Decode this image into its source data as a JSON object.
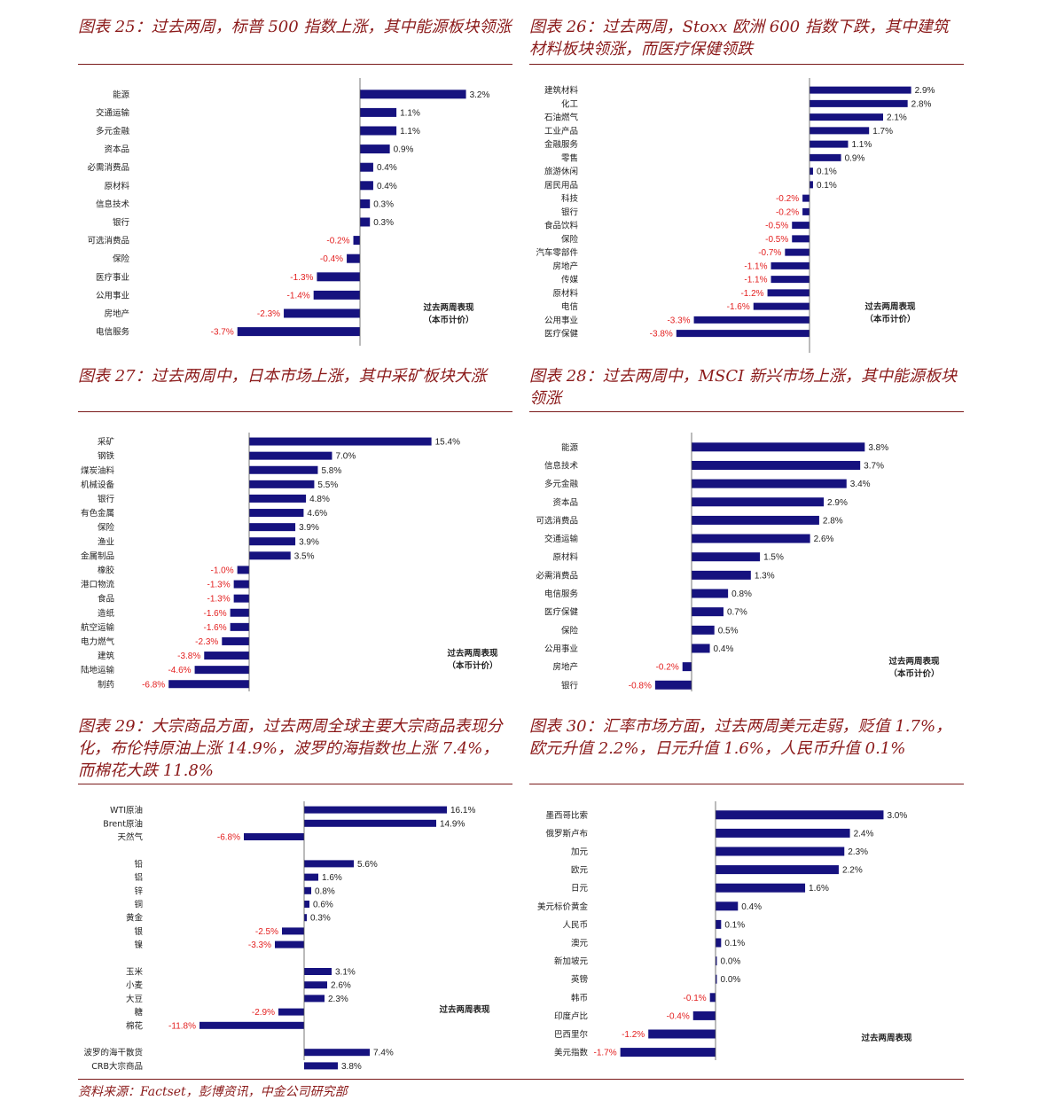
{
  "source": "资料来源：Factset，彭博资讯，中金公司研究部",
  "colors": {
    "bar": "#16127f",
    "positive_label": "#222222",
    "negative_label": "#e31e1e",
    "title": "#8b1a1a"
  },
  "charts": [
    {
      "title": "图表 25：过去两周，标普 500 指数上涨，其中能源板块领涨",
      "note1": "过去两周表现",
      "note2": "（本币计价）",
      "chart_data": {
        "type": "bar",
        "orientation": "horizontal",
        "unit": "%",
        "xlim": [
          -4.0,
          3.8
        ],
        "categories": [
          "能源",
          "交通运输",
          "多元金融",
          "资本品",
          "必需消费品",
          "原材料",
          "信息技术",
          "银行",
          "可选消费品",
          "保险",
          "医疗事业",
          "公用事业",
          "房地产",
          "电信服务"
        ],
        "values": [
          3.2,
          1.1,
          1.1,
          0.9,
          0.4,
          0.4,
          0.3,
          0.3,
          -0.2,
          -0.4,
          -1.3,
          -1.4,
          -2.3,
          -3.7
        ]
      }
    },
    {
      "title": "图表 26：过去两周，Stoxx 欧洲 600 指数下跌，其中建筑材料板块领涨，而医疗保健领跌",
      "note1": "过去两周表现",
      "note2": "（本币计价）",
      "chart_data": {
        "type": "bar",
        "orientation": "horizontal",
        "unit": "%",
        "xlim": [
          -4.2,
          3.6
        ],
        "categories": [
          "建筑材料",
          "化工",
          "石油燃气",
          "工业产品",
          "金融服务",
          "零售",
          "旅游休闲",
          "居民用品",
          "科技",
          "银行",
          "食品饮料",
          "保险",
          "汽车零部件",
          "房地产",
          "传媒",
          "原材料",
          "电信",
          "公用事业",
          "医疗保健"
        ],
        "values": [
          2.9,
          2.8,
          2.1,
          1.7,
          1.1,
          0.9,
          0.1,
          0.1,
          -0.2,
          -0.2,
          -0.5,
          -0.5,
          -0.7,
          -1.1,
          -1.1,
          -1.2,
          -1.6,
          -3.3,
          -3.8
        ]
      }
    },
    {
      "title": "图表 27：过去两周中，日本市场上涨，其中采矿板块大涨",
      "note1": "过去两周表现",
      "note2": "（本币计价）",
      "chart_data": {
        "type": "bar",
        "orientation": "horizontal",
        "unit": "%",
        "xlim": [
          -7.0,
          18.5
        ],
        "categories": [
          "采矿",
          "钢铁",
          "煤炭油料",
          "机械设备",
          "银行",
          "有色金属",
          "保险",
          "渔业",
          "金属制品",
          "橡胶",
          "港口物流",
          "食品",
          "造纸",
          "航空运输",
          "电力燃气",
          "建筑",
          "陆地运输",
          "制药"
        ],
        "values": [
          15.4,
          7.0,
          5.8,
          5.5,
          4.8,
          4.6,
          3.9,
          3.9,
          3.5,
          -1.0,
          -1.3,
          -1.3,
          -1.6,
          -1.6,
          -2.3,
          -3.8,
          -4.6,
          -6.8
        ]
      }
    },
    {
      "title": "图表 28：过去两周中，MSCI 新兴市场上涨，其中能源板块领涨",
      "note1": "过去两周表现",
      "note2": "（本币计价）",
      "chart_data": {
        "type": "bar",
        "orientation": "horizontal",
        "unit": "%",
        "xlim": [
          -1.2,
          5.0
        ],
        "categories": [
          "能源",
          "信息技术",
          "多元金融",
          "资本品",
          "可选消费品",
          "交通运输",
          "原材料",
          "必需消费品",
          "电信服务",
          "医疗保健",
          "保险",
          "公用事业",
          "房地产",
          "银行"
        ],
        "values": [
          3.8,
          3.7,
          3.4,
          2.9,
          2.8,
          2.6,
          1.5,
          1.3,
          0.8,
          0.7,
          0.5,
          0.4,
          -0.2,
          -0.8
        ]
      }
    },
    {
      "title": "图表 29：大宗商品方面，过去两周全球主要大宗商品表现分化，布伦特原油上涨 14.9%，波罗的海指数也上涨 7.4%，而棉花大跌 11.8%",
      "note1": "过去两周表现",
      "note2": "",
      "chart_data": {
        "type": "bar",
        "orientation": "horizontal",
        "unit": "%",
        "xlim": [
          -12.5,
          20.0
        ],
        "categories": [
          "WTI原油",
          "Brent原油",
          "天然气",
          "",
          "铅",
          "铝",
          "锌",
          "铜",
          "黄金",
          "银",
          "镍",
          "",
          "玉米",
          "小麦",
          "大豆",
          "糖",
          "棉花",
          "",
          "波罗的海干散货",
          "CRB大宗商品"
        ],
        "values": [
          16.1,
          14.9,
          -6.8,
          null,
          5.6,
          1.6,
          0.8,
          0.6,
          0.3,
          -2.5,
          -3.3,
          null,
          3.1,
          2.6,
          2.3,
          -2.9,
          -11.8,
          null,
          7.4,
          3.8
        ]
      }
    },
    {
      "title": "图表 30：汇率市场方面，过去两周美元走弱，贬值 1.7%，欧元升值 2.2%，日元升值 1.6%，人民币升值 0.1%",
      "note1": "过去两周表现",
      "note2": "",
      "chart_data": {
        "type": "bar",
        "orientation": "horizontal",
        "unit": "%",
        "xlim": [
          -1.9,
          3.8
        ],
        "categories": [
          "墨西哥比索",
          "俄罗斯卢布",
          "加元",
          "欧元",
          "日元",
          "美元标价黄金",
          "人民币",
          "澳元",
          "新加坡元",
          "英镑",
          "韩币",
          "印度卢比",
          "巴西里尔",
          "美元指数"
        ],
        "values": [
          3.0,
          2.4,
          2.3,
          2.2,
          1.6,
          0.4,
          0.1,
          0.1,
          0.0,
          0.0,
          -0.1,
          -0.4,
          -1.2,
          -1.7
        ]
      }
    }
  ]
}
